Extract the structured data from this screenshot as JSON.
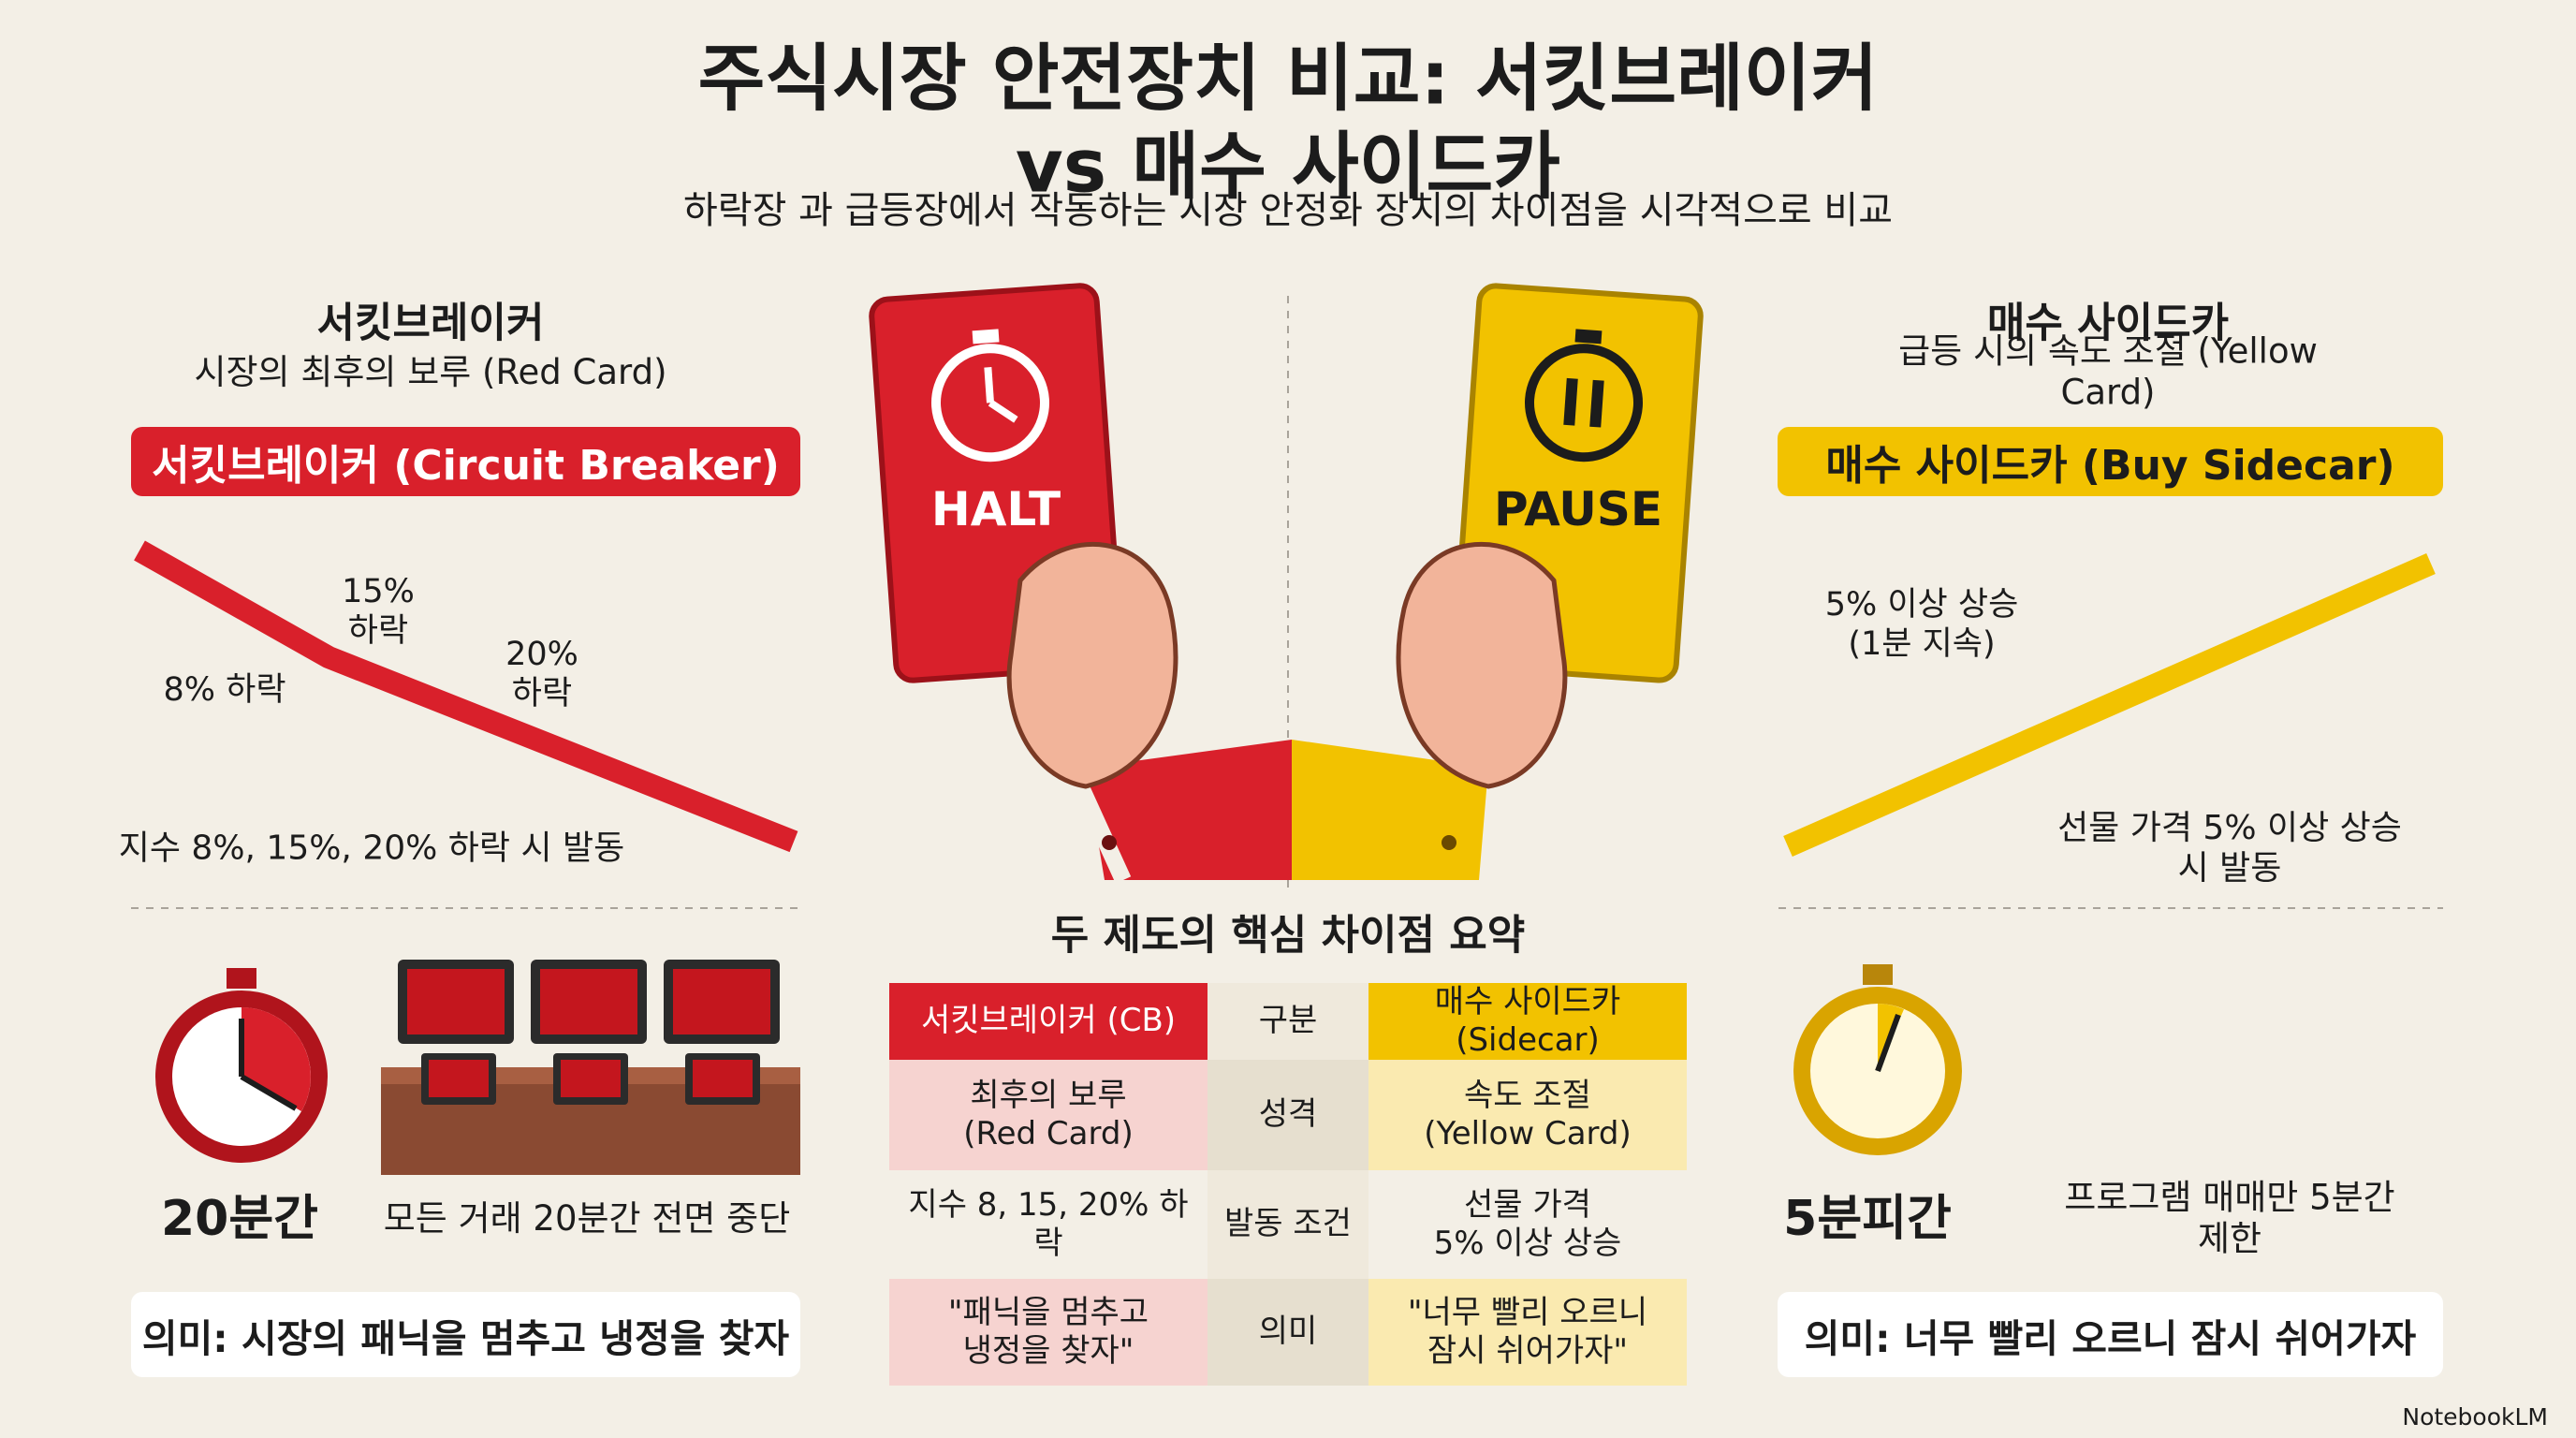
{
  "header": {
    "title": "주식시장 안전장치 비교: 서킷브레이커 vs 매수 사이드카",
    "subtitle": "하락장 과 급등장에서 작동하는 시장 안정화 장치의 차이점을 시각적으로 비교"
  },
  "left": {
    "heading": "서킷브레이커",
    "subheading": "시장의 최후의 보루 (Red Card)",
    "banner": "서킷브레이커 (Circuit Breaker)",
    "graph_labels": [
      "8% 하락",
      "15%\n하락",
      "20%\n하락"
    ],
    "trigger": "지수 8%, 15%, 20% 하락 시 발동",
    "duration": "20분간",
    "action": "모든 거래 20분간 전면 중단",
    "meaning": "의미: 시장의 패닉을 멈추고 냉정을 찾자"
  },
  "cards": {
    "red": "HALT",
    "yellow": "PAUSE"
  },
  "right": {
    "heading": "매수 사이드카",
    "subheading": "급등 시의 속도 조절 (Yellow Card)",
    "banner": "매수 사이드카 (Buy Sidecar)",
    "graph_labels": [
      "5% 이상 상승\n(1분 지속)"
    ],
    "trigger": "선물 가격 5% 이상 상승 시 발동",
    "duration": "5분피간",
    "action": "프로그램 매매만 5분간 제한",
    "meaning": "의미: 너무 빨리 오르니 잠시 쉬어가자"
  },
  "table": {
    "title": "두 제도의 핵심 차이점 요약",
    "header": [
      "서킷브레이커 (CB)",
      "구분",
      "매수 사이드카 (Sidecar)"
    ],
    "rows": [
      [
        "최후의 보루\n(Red Card)",
        "성격",
        "속도 조절\n(Yellow Card)"
      ],
      [
        "지수 8, 15, 20% 하락",
        "발동 조건",
        "선물 가격\n5% 이상 상승"
      ],
      [
        "\"패닉을 멈추고\n냉정을 찾자\"",
        "의미",
        "\"너무 빨리 오르니\n잠시 쉬어가자\""
      ]
    ]
  },
  "footer": {
    "brand": "NotebookLM"
  }
}
